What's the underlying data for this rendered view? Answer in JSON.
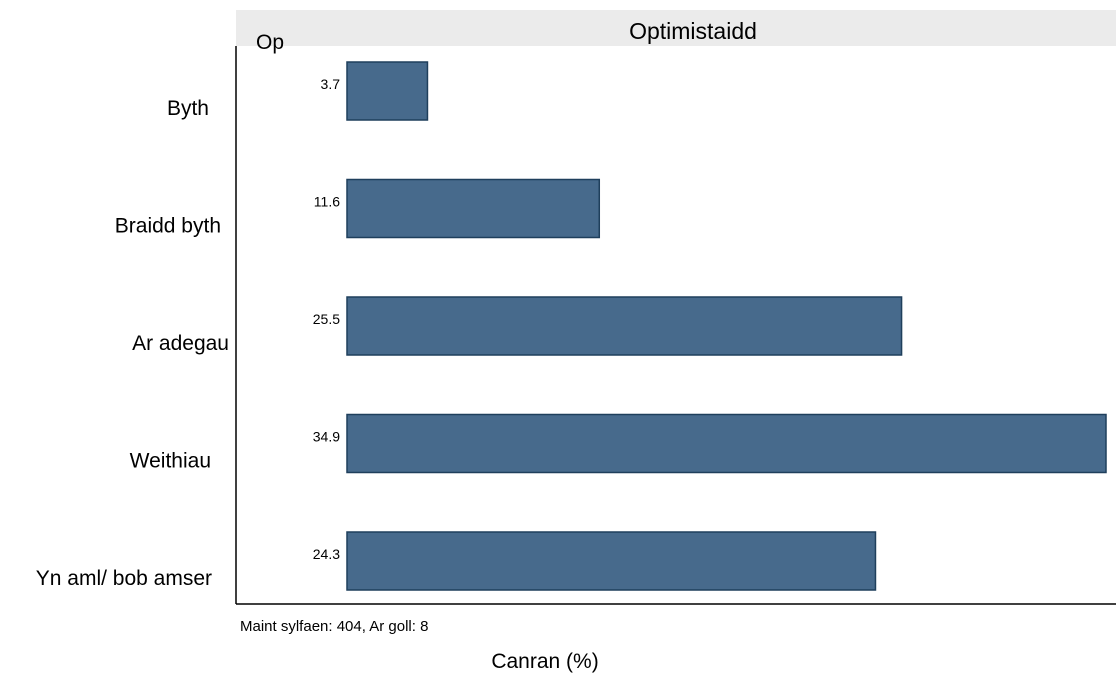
{
  "chart_data": {
    "type": "bar",
    "orientation": "horizontal",
    "title": "Optimistaidd",
    "corner_label": "Op",
    "categories": [
      "Byth",
      "Braidd byth",
      "Ar adegau",
      "Weithiau",
      "Yn aml/ bob amser"
    ],
    "values": [
      3.7,
      11.6,
      25.5,
      34.9,
      24.3
    ],
    "value_labels": [
      "3.7",
      "11.6",
      "25.5",
      "34.9",
      "24.3"
    ],
    "xlabel": "Canran (%)",
    "ylabel": "",
    "xlim": [
      0,
      35
    ],
    "note": "Maint sylfaen: 404, Ar goll: 8",
    "grid": false,
    "bar_color": "#476a8c",
    "bar_edge_color": "#1f3f5c",
    "header_color": "#ebebeb"
  }
}
